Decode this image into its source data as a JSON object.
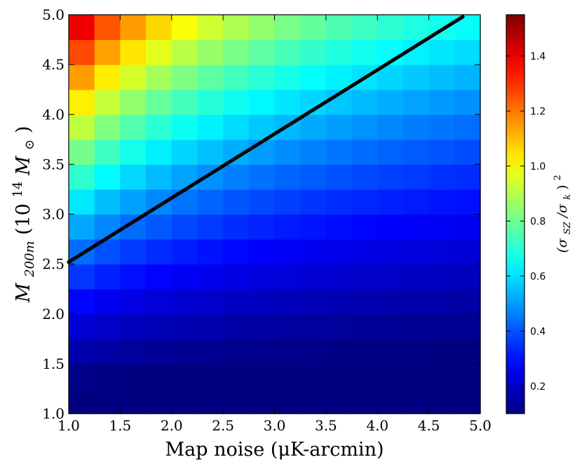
{
  "chart_data": {
    "type": "heatmap",
    "xlabel": "Map noise (μK-arcmin)",
    "ylabel_parts": [
      "M",
      "200m",
      " (10",
      "14",
      " M",
      "⊙",
      ")"
    ],
    "colorbar_label_parts": [
      "(σ",
      "SZ",
      "/σ",
      "k",
      ")",
      "2"
    ],
    "xlim": [
      1.0,
      5.0
    ],
    "ylim": [
      1.0,
      5.0
    ],
    "x_ticks": [
      "1.0",
      "1.5",
      "2.0",
      "2.5",
      "3.0",
      "3.5",
      "4.0",
      "4.5",
      "5.0"
    ],
    "y_ticks": [
      "1.0",
      "1.5",
      "2.0",
      "2.5",
      "3.0",
      "3.5",
      "4.0",
      "4.5",
      "5.0"
    ],
    "colorbar": {
      "colormap": "jet",
      "range": [
        0.1,
        1.55
      ],
      "ticks": [
        "0.2",
        "0.4",
        "0.6",
        "0.8",
        "1.0",
        "1.2",
        "1.4"
      ]
    },
    "grid": false,
    "x_bins": 16,
    "y_bins": 16,
    "values_model": "value = 0.05 + 1.5 * ((mass - 0.8) / 4.2)^1.55 / (noise / 1.0)^0.55, approximately, per bin",
    "line": {
      "name": "",
      "color": "#000000",
      "points": [
        [
          1.0,
          2.52
        ],
        [
          4.83,
          4.98
        ]
      ]
    }
  }
}
